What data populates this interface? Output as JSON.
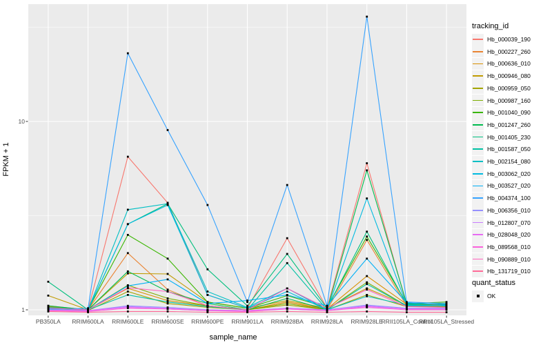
{
  "figure": {
    "panel_bg": "#ebebeb",
    "grid_color": "#ffffff",
    "tick_color": "#333333",
    "tick_label_color": "#4d4d4d",
    "point_color": "#000000"
  },
  "axes": {
    "x_title": "sample_name",
    "y_title": "FPKM + 1",
    "y_scale": "log10",
    "y_major_ticks": [
      {
        "label": "1",
        "value": 1
      },
      {
        "label": "10",
        "value": 10
      }
    ],
    "y_minor_values": [
      3.1623,
      31.623
    ]
  },
  "legend_tracking": {
    "title": "tracking_id"
  },
  "legend_quant": {
    "title": "quant_status",
    "items": [
      {
        "label": "OK",
        "symbol": "black-square"
      }
    ]
  },
  "chart_data": {
    "type": "line",
    "title": "",
    "xlabel": "sample_name",
    "ylabel": "FPKM + 1",
    "yscale": "log10",
    "ylim": [
      0.95,
      40
    ],
    "grid": true,
    "legend_position": "right",
    "point_marker": "filled-black-square",
    "categories": [
      "PB350LA",
      "RRIM600LA",
      "RRIM600LE",
      "RRIM600SE",
      "RRIM600PE",
      "RRIM901LA",
      "RRIM928BA",
      "RRIM928LA",
      "RRIM928LE",
      "RRII105LA_Control",
      "RRII105LA_Stressed"
    ],
    "series": [
      {
        "name": "Hb_000039_190",
        "color": "#F8766D",
        "values": [
          1.05,
          1.0,
          6.5,
          3.7,
          1.2,
          1.02,
          2.4,
          1.02,
          6.0,
          1.06,
          1.04
        ]
      },
      {
        "name": "Hb_000227_260",
        "color": "#EA8331",
        "values": [
          1.03,
          1.0,
          2.0,
          1.28,
          1.05,
          1.0,
          1.1,
          1.0,
          2.35,
          1.05,
          1.03
        ]
      },
      {
        "name": "Hb_000636_010",
        "color": "#D89000",
        "values": [
          1.04,
          1.0,
          1.3,
          1.12,
          1.05,
          1.0,
          1.1,
          1.01,
          1.51,
          1.07,
          1.06
        ]
      },
      {
        "name": "Hb_000946_080",
        "color": "#C09B00",
        "values": [
          1.19,
          1.0,
          1.56,
          1.55,
          1.1,
          1.02,
          1.12,
          1.02,
          1.3,
          1.06,
          1.05
        ]
      },
      {
        "name": "Hb_000959_050",
        "color": "#A3A500",
        "values": [
          1.02,
          0.99,
          1.25,
          1.08,
          1.03,
          1.0,
          1.06,
          1.0,
          1.2,
          1.04,
          1.04
        ]
      },
      {
        "name": "Hb_000987_160",
        "color": "#7CAE00",
        "values": [
          1.02,
          1.0,
          1.35,
          1.15,
          1.05,
          1.0,
          1.08,
          1.0,
          1.4,
          1.05,
          1.08
        ]
      },
      {
        "name": "Hb_001040_090",
        "color": "#39B600",
        "values": [
          1.03,
          1.0,
          2.5,
          1.87,
          1.1,
          1.02,
          1.19,
          1.03,
          2.45,
          1.08,
          1.1
        ]
      },
      {
        "name": "Hb_001247_260",
        "color": "#00BB4E",
        "values": [
          1.05,
          1.0,
          1.6,
          1.25,
          1.08,
          1.0,
          1.15,
          1.0,
          5.5,
          1.08,
          1.07
        ]
      },
      {
        "name": "Hb_001405_230",
        "color": "#00BF7D",
        "values": [
          1.41,
          1.0,
          2.85,
          3.66,
          1.64,
          1.05,
          1.98,
          1.02,
          2.6,
          1.07,
          1.07
        ]
      },
      {
        "name": "Hb_001587_050",
        "color": "#00C1A3",
        "values": [
          1.03,
          1.0,
          1.2,
          1.1,
          1.04,
          1.0,
          1.77,
          1.0,
          1.37,
          1.05,
          1.05
        ]
      },
      {
        "name": "Hb_002154_080",
        "color": "#00BFC4",
        "values": [
          1.02,
          1.0,
          3.4,
          3.66,
          1.25,
          1.03,
          1.3,
          1.0,
          1.18,
          1.06,
          1.05
        ]
      },
      {
        "name": "Hb_003062_020",
        "color": "#00BAE0",
        "values": [
          1.02,
          1.0,
          2.85,
          3.6,
          1.2,
          1.02,
          1.25,
          1.0,
          3.9,
          1.06,
          1.05
        ]
      },
      {
        "name": "Hb_003527_020",
        "color": "#00B0F6",
        "values": [
          1.01,
          1.0,
          1.34,
          1.45,
          1.08,
          1.12,
          1.2,
          1.05,
          1.87,
          1.09,
          1.06
        ]
      },
      {
        "name": "Hb_004374_100",
        "color": "#35A2FF",
        "values": [
          1.0,
          1.02,
          23.0,
          9.0,
          3.6,
          1.1,
          4.6,
          1.05,
          36.0,
          1.1,
          1.08
        ]
      },
      {
        "name": "Hb_006356_010",
        "color": "#9590FF",
        "values": [
          1.0,
          0.99,
          1.05,
          1.03,
          1.0,
          0.99,
          1.02,
          1.0,
          1.06,
          1.02,
          1.02
        ]
      },
      {
        "name": "Hb_012807_070",
        "color": "#C77CFF",
        "values": [
          1.0,
          0.99,
          1.04,
          1.02,
          1.0,
          0.99,
          1.02,
          1.0,
          1.05,
          1.01,
          1.01
        ]
      },
      {
        "name": "Hb_028048_020",
        "color": "#E76BF3",
        "values": [
          0.99,
          0.99,
          1.03,
          1.01,
          0.99,
          0.99,
          1.01,
          0.99,
          1.04,
          1.01,
          1.01
        ]
      },
      {
        "name": "Hb_089568_010",
        "color": "#FA62DB",
        "values": [
          0.99,
          0.98,
          1.02,
          1.01,
          0.99,
          0.98,
          1.01,
          0.99,
          1.03,
          1.0,
          1.0
        ]
      },
      {
        "name": "Hb_090889_010",
        "color": "#FF62BC",
        "values": [
          1.02,
          1.0,
          1.31,
          1.25,
          1.05,
          1.0,
          1.3,
          1.02,
          1.28,
          1.04,
          1.03
        ]
      },
      {
        "name": "Hb_131719_010",
        "color": "#FF6A98",
        "values": [
          0.98,
          0.97,
          0.98,
          0.98,
          0.97,
          0.97,
          0.98,
          0.97,
          0.98,
          0.97,
          0.97
        ]
      }
    ]
  }
}
